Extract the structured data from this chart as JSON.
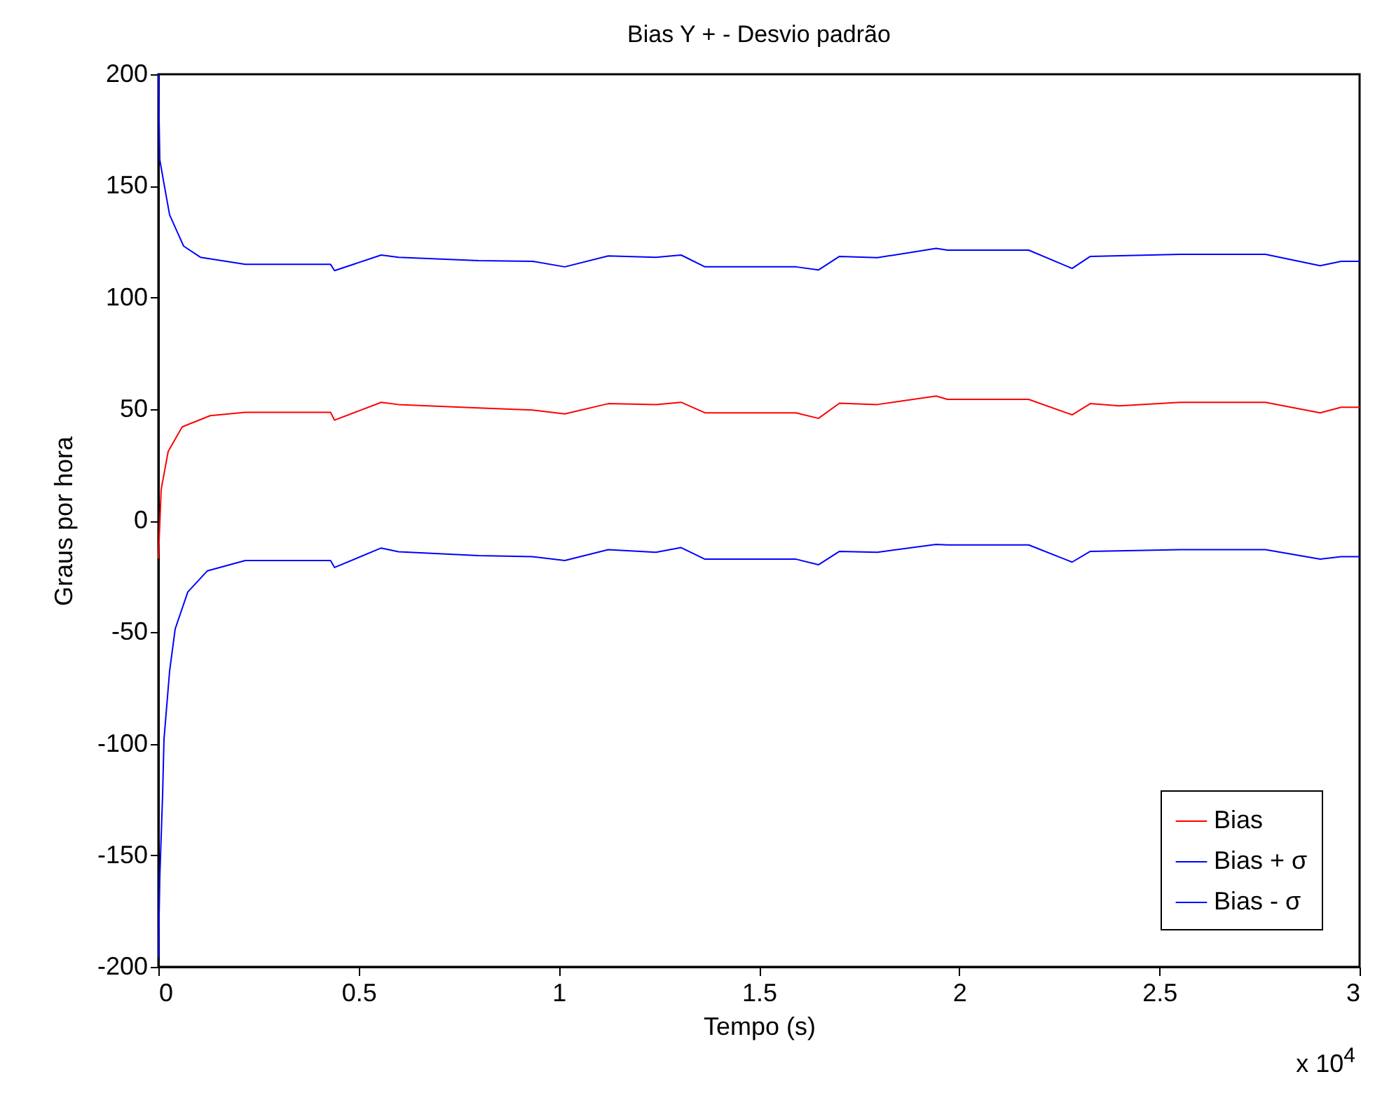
{
  "chart_data": {
    "type": "line",
    "title": "Bias Y + - Desvio padrão",
    "xlabel": "Tempo (s)",
    "ylabel": "Graus por hora",
    "annotations": [
      "x 10$^{4}$"
    ],
    "xlim": [
      0,
      3
    ],
    "ylim": [
      -200,
      200
    ],
    "xticks": [
      0,
      0.5,
      1,
      1.5,
      2,
      2.5,
      3
    ],
    "yticks": [
      -200,
      -150,
      -100,
      -50,
      0,
      50,
      100,
      150,
      200
    ],
    "grid": false,
    "legend": "bottom right",
    "marker": "none",
    "line_style": "solid",
    "series": [
      {
        "name": "Bias",
        "color": "#ff0000",
        "x": [
          0,
          0.007,
          0.0245,
          0.0595,
          0.1295,
          0.217,
          0.43,
          0.44,
          0.5565,
          0.6,
          0.8,
          0.9345,
          1.015,
          1.1235,
          1.2425,
          1.3055,
          1.365,
          1.5925,
          1.6485,
          1.701,
          1.7955,
          1.9425,
          1.9705,
          2.1735,
          2.282,
          2.3275,
          2.4,
          2.5515,
          2.765,
          2.9015,
          2.954,
          3
        ],
        "values": [
          -17,
          14,
          31,
          42,
          47,
          48.5,
          48.5,
          45,
          53,
          52,
          50.5,
          49.5,
          47.8,
          52.4,
          52,
          53,
          48.3,
          48.3,
          45.8,
          52.6,
          52,
          55.8,
          54.3,
          54.3,
          47.4,
          52.4,
          51.4,
          53,
          53,
          48.3,
          50.8,
          50.8
        ]
      },
      {
        "name": "Bias + σ",
        "color": "#0000ff",
        "x": [
          0,
          0.0035,
          0.014,
          0.028,
          0.063,
          0.105,
          0.217,
          0.43,
          0.44,
          0.5565,
          0.6,
          0.8,
          0.9345,
          1.015,
          1.1235,
          1.2425,
          1.3055,
          1.365,
          1.5925,
          1.6485,
          1.701,
          1.7955,
          1.9425,
          1.9705,
          2.1735,
          2.282,
          2.3275,
          2.5515,
          2.765,
          2.9015,
          2.954,
          3
        ],
        "values": [
          200,
          161.7,
          151,
          137,
          123,
          118,
          114.8,
          114.8,
          112,
          119,
          118,
          116.5,
          116.2,
          113.7,
          118.6,
          118,
          119,
          113.7,
          113.7,
          112.3,
          118.4,
          117.8,
          122,
          121.2,
          121.2,
          113,
          118.4,
          119.3,
          119.3,
          114.2,
          116.2,
          116.2
        ]
      },
      {
        "name": "Bias - σ",
        "color": "#0000ff",
        "x": [
          0,
          0.0035,
          0.0105,
          0.014,
          0.028,
          0.042,
          0.0735,
          0.1225,
          0.217,
          0.43,
          0.44,
          0.5565,
          0.6,
          0.8,
          0.9345,
          1.015,
          1.1235,
          1.2425,
          1.3055,
          1.365,
          1.5925,
          1.6485,
          1.701,
          1.7955,
          1.9425,
          1.9705,
          2.1735,
          2.282,
          2.3275,
          2.5515,
          2.765,
          2.9015,
          2.954,
          3
        ],
        "values": [
          -196,
          -160,
          -123,
          -98,
          -67.5,
          -48.5,
          -32,
          -22.5,
          -17.9,
          -17.9,
          -21,
          -12.3,
          -14,
          -15.7,
          -16.2,
          -17.9,
          -13,
          -14.2,
          -12.1,
          -17.3,
          -17.3,
          -19.8,
          -13.8,
          -14.2,
          -10.7,
          -10.9,
          -10.9,
          -18.6,
          -13.8,
          -13,
          -13,
          -17.3,
          -16.2,
          -16.2
        ]
      }
    ]
  }
}
